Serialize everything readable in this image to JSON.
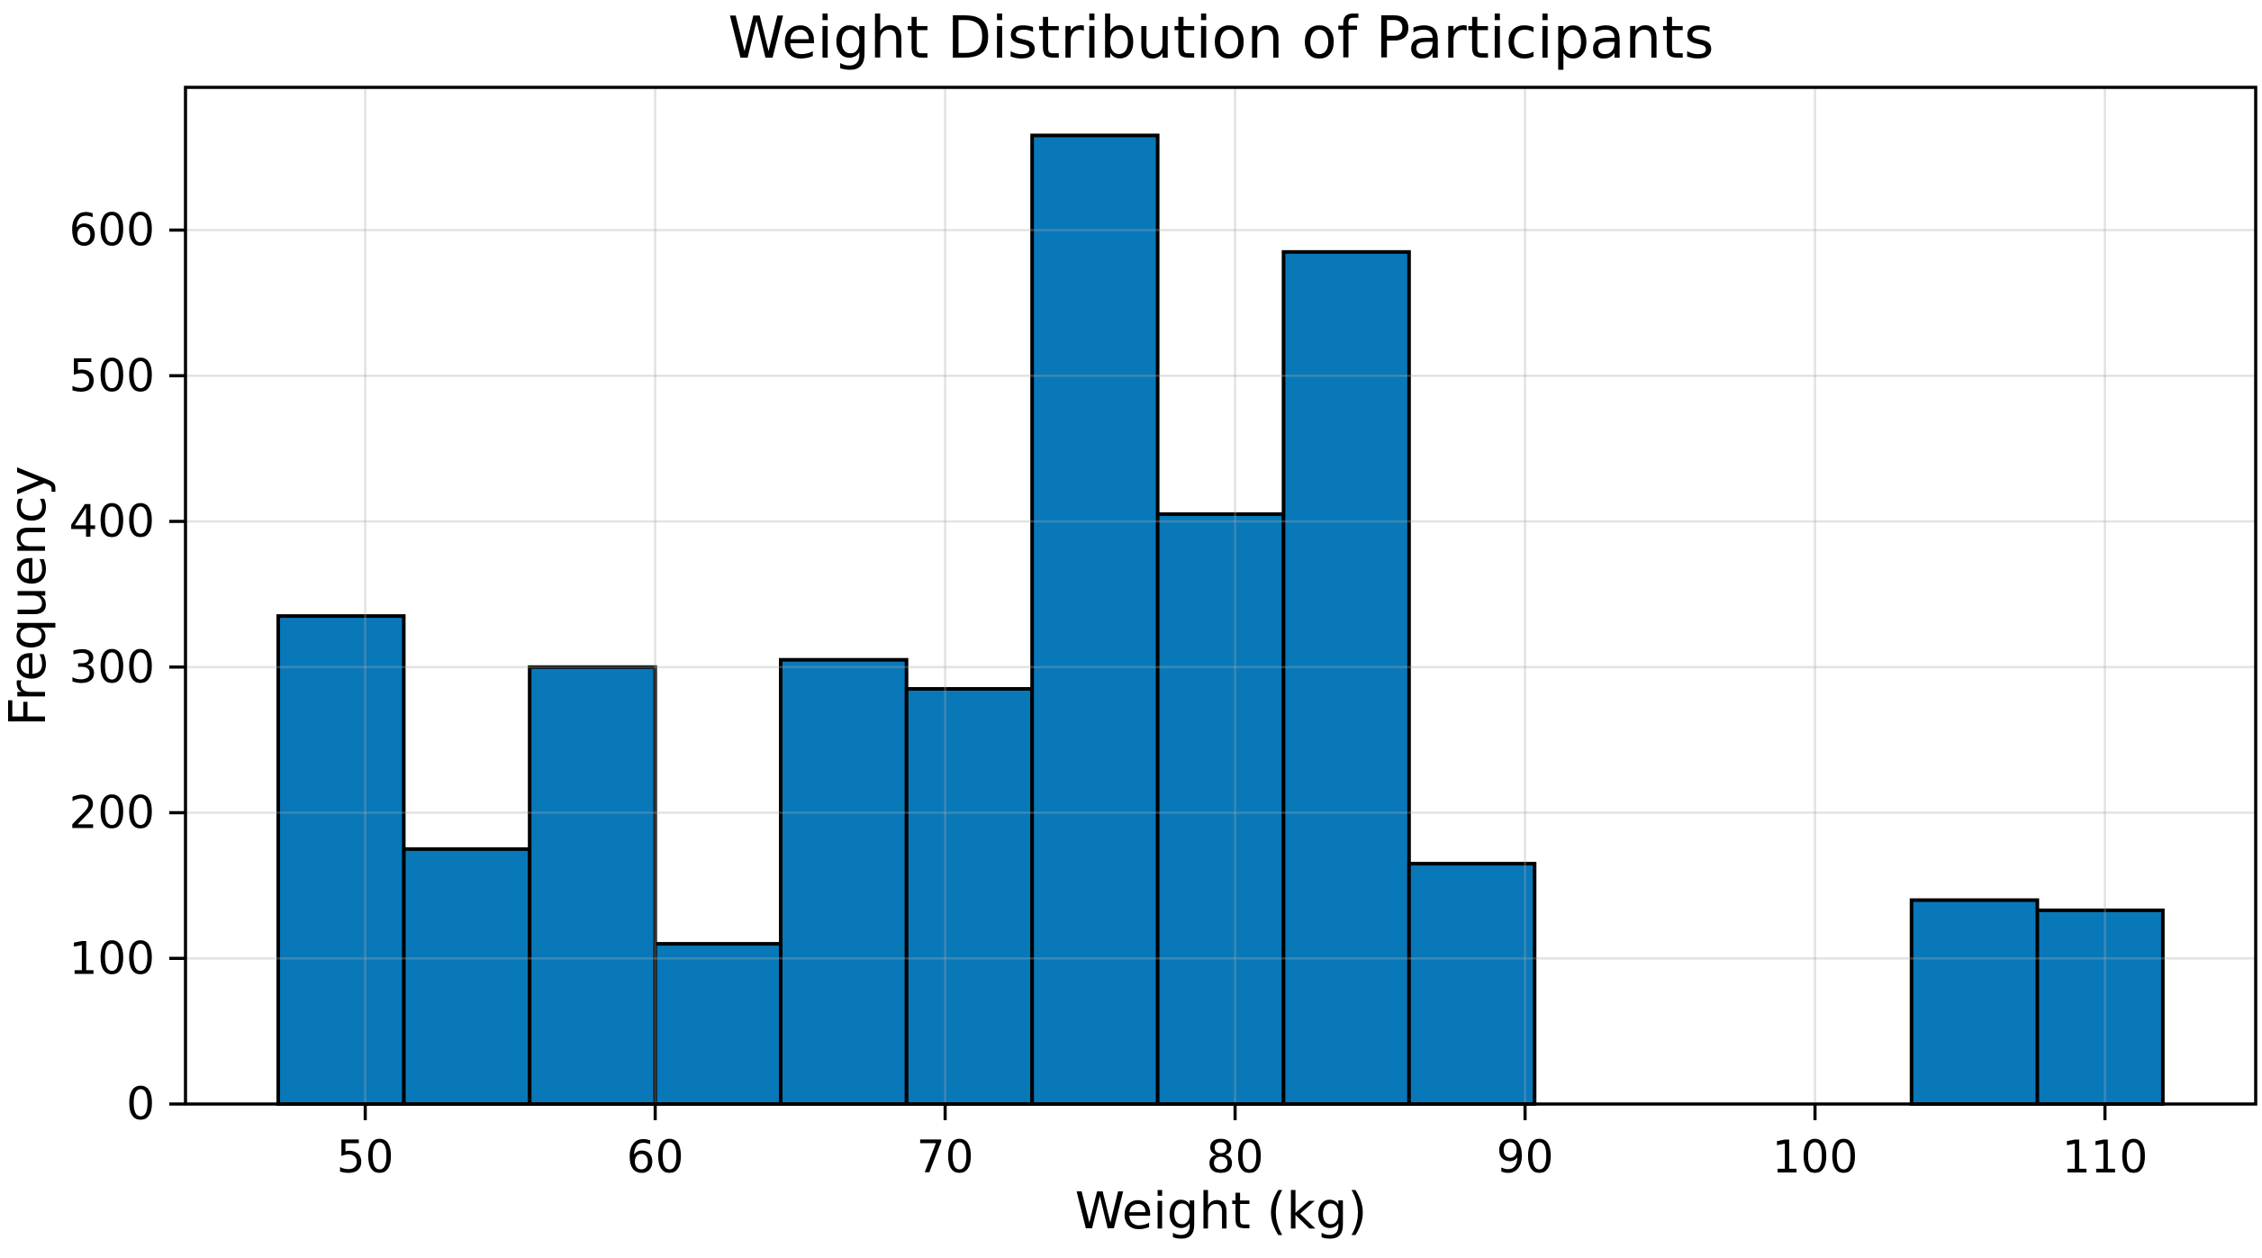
{
  "chart_data": {
    "type": "bar",
    "subtype": "histogram",
    "title": "Weight Distribution of Participants",
    "xlabel": "Weight (kg)",
    "ylabel": "Frequency",
    "bin_edges": [
      47.0,
      51.33,
      55.67,
      60.0,
      64.33,
      68.67,
      73.0,
      77.33,
      81.67,
      86.0,
      90.33,
      94.67,
      99.0,
      103.33,
      107.67,
      112.0
    ],
    "counts": [
      335,
      175,
      300,
      110,
      305,
      285,
      665,
      405,
      585,
      165,
      0,
      0,
      0,
      140,
      133
    ],
    "x_ticks": [
      50,
      60,
      70,
      80,
      90,
      100,
      110
    ],
    "y_ticks": [
      0,
      100,
      200,
      300,
      400,
      500,
      600
    ],
    "xlim": [
      43.8,
      115.2
    ],
    "ylim": [
      0,
      698
    ],
    "grid": true,
    "grid_over_bars": true,
    "bar_color": "#0878b9",
    "bar_edge_color": "#000000",
    "gridline_color": "#a9a9a9",
    "background_color": "#ffffff",
    "legend": "none"
  }
}
